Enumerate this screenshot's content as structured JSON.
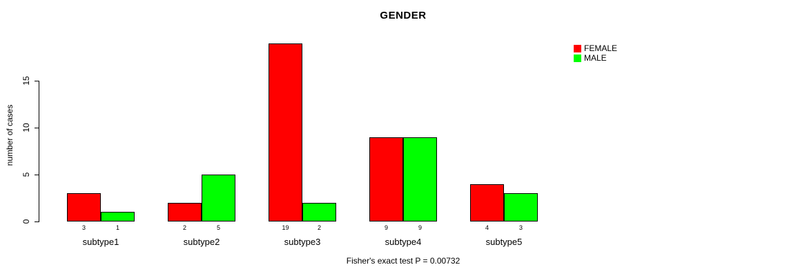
{
  "chart_data": {
    "type": "bar",
    "title": "GENDER",
    "ylabel": "number of cases",
    "xlabel": "",
    "categories": [
      "subtype1",
      "subtype2",
      "subtype3",
      "subtype4",
      "subtype5"
    ],
    "series": [
      {
        "name": "FEMALE",
        "color": "#ff0000",
        "values": [
          3,
          2,
          19,
          9,
          4
        ]
      },
      {
        "name": "MALE",
        "color": "#00ff00",
        "values": [
          1,
          5,
          2,
          9,
          3
        ]
      }
    ],
    "bar_value_labels": {
      "FEMALE": [
        3,
        2,
        19,
        9,
        4
      ],
      "MALE": [
        1,
        5,
        2,
        9,
        3
      ]
    },
    "yticks": [
      0,
      5,
      10,
      15
    ],
    "ylim": [
      0,
      19
    ],
    "grid": false,
    "legend_position": "top-right",
    "bar_border_color": "#000000",
    "footer": "Fisher's exact test P = 0.00732"
  }
}
